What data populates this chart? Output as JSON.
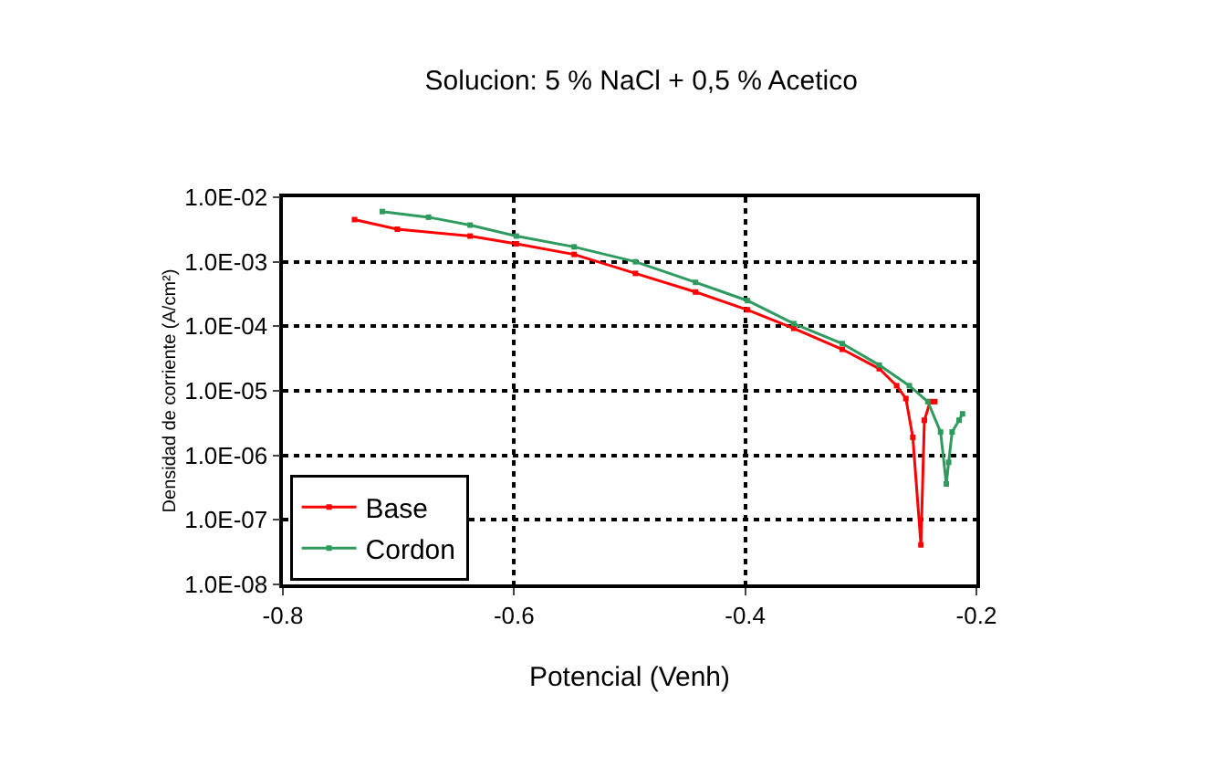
{
  "chart_data": {
    "type": "line",
    "title": "Solucion: 5 % NaCl + 0,5 % Acetico",
    "xlabel": "Potencial (Venh)",
    "ylabel": "Densidad de corriente (A/cm²)",
    "log": "y",
    "grid": true,
    "legend": "bottom left",
    "marker": "square",
    "line_style": "solid",
    "xlim": [
      -0.8,
      -0.2
    ],
    "xticks": [
      -0.8,
      -0.6,
      -0.4,
      -0.2
    ],
    "ylim": [
      1e-08,
      0.01
    ],
    "yticks": [
      {
        "value": 1e-08,
        "label": "1.0E-08"
      },
      {
        "value": 1e-07,
        "label": "1.0E-07"
      },
      {
        "value": 1e-06,
        "label": "1.0E-06"
      },
      {
        "value": 1e-05,
        "label": "1.0E-05"
      },
      {
        "value": 0.0001,
        "label": "1.0E-04"
      },
      {
        "value": 0.001,
        "label": "1.0E-03"
      },
      {
        "value": 0.01,
        "label": "1.0E-02"
      }
    ],
    "series": [
      {
        "name": "Base",
        "color": "#ff0000",
        "x": [
          -0.738,
          -0.701,
          -0.638,
          -0.598,
          -0.548,
          -0.495,
          -0.443,
          -0.398,
          -0.358,
          -0.316,
          -0.284,
          -0.269,
          -0.261,
          -0.255,
          -0.248,
          -0.245,
          -0.24,
          -0.236
        ],
        "values": [
          0.0045,
          0.0032,
          0.0025,
          0.0019,
          0.0013,
          0.00066,
          0.00034,
          0.00018,
          9.3e-05,
          4.4e-05,
          2.2e-05,
          1.2e-05,
          7.6e-06,
          1.9e-06,
          4.1e-08,
          3.5e-06,
          6.8e-06,
          6.8e-06
        ]
      },
      {
        "name": "Cordon",
        "color": "#2e9a5e",
        "x": [
          -0.714,
          -0.674,
          -0.638,
          -0.598,
          -0.548,
          -0.495,
          -0.443,
          -0.398,
          -0.358,
          -0.316,
          -0.284,
          -0.258,
          -0.242,
          -0.231,
          -0.226,
          -0.224,
          -0.221,
          -0.215,
          -0.212
        ],
        "values": [
          0.006,
          0.0049,
          0.0037,
          0.0025,
          0.0017,
          0.001,
          0.00048,
          0.00025,
          0.00011,
          5.4e-05,
          2.5e-05,
          1.2e-05,
          6.8e-06,
          2.3e-06,
          3.6e-07,
          7.8e-07,
          2.3e-06,
          3.5e-06,
          4.4e-06
        ]
      }
    ]
  }
}
